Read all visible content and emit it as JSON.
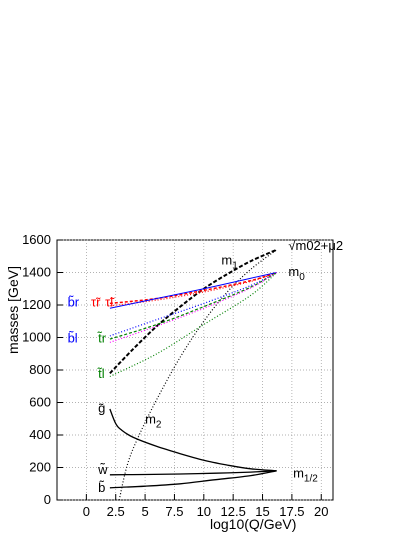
{
  "chart_data": {
    "type": "line",
    "xlabel": "log10(Q/GeV)",
    "ylabel": "masses [GeV]",
    "xlim": [
      -2.5,
      21
    ],
    "ylim": [
      0,
      1600
    ],
    "xticks": [
      0,
      2.5,
      5,
      7.5,
      10,
      12.5,
      15,
      17.5,
      20
    ],
    "xtick_labels": [
      "0",
      "2.5",
      "5",
      "7.5",
      "10",
      "12.5",
      "15",
      "17.5",
      "20"
    ],
    "yticks": [
      0,
      200,
      400,
      600,
      800,
      1000,
      1200,
      1400,
      1600
    ],
    "ytick_labels": [
      "0",
      "200",
      "400",
      "600",
      "800",
      "1000",
      "1200",
      "1400",
      "1600"
    ],
    "grid": true,
    "series": [
      {
        "name": "m1",
        "color": "#000000",
        "dash": "4 2",
        "width": 2,
        "x": [
          2,
          4,
          6,
          8,
          10,
          12,
          14,
          16.2
        ],
        "y": [
          780,
          930,
          1070,
          1190,
          1300,
          1390,
          1470,
          1540
        ]
      },
      {
        "name": "m2",
        "color": "#000000",
        "dash": "1 2",
        "width": 1.2,
        "x": [
          2.8,
          3.5,
          4.5,
          6,
          8,
          10,
          12,
          14,
          16.2
        ],
        "y": [
          0,
          220,
          400,
          620,
          880,
          1100,
          1280,
          1420,
          1540
        ]
      },
      {
        "name": "gluino",
        "color": "#000000",
        "dash": "",
        "width": 1.3,
        "x": [
          2,
          2.5,
          3,
          4,
          6,
          8,
          10,
          12,
          14,
          16.2
        ],
        "y": [
          560,
          470,
          430,
          385,
          330,
          285,
          245,
          215,
          192,
          180
        ]
      },
      {
        "name": "wino",
        "color": "#000000",
        "dash": "",
        "width": 1.3,
        "x": [
          2,
          5,
          8,
          11,
          14,
          16.2
        ],
        "y": [
          155,
          157,
          160,
          165,
          172,
          180
        ]
      },
      {
        "name": "bino",
        "color": "#000000",
        "dash": "",
        "width": 1.3,
        "x": [
          2,
          5,
          8,
          11,
          14,
          16.2
        ],
        "y": [
          75,
          85,
          100,
          125,
          150,
          180
        ]
      },
      {
        "name": "tau_l",
        "color": "#ff0000",
        "dash": "3 2",
        "width": 1.5,
        "x": [
          2,
          6,
          10,
          14,
          16.2
        ],
        "y": [
          1210,
          1240,
          1290,
          1350,
          1400
        ]
      },
      {
        "name": "tau_r",
        "color": "#ff0000",
        "dash": "1 2",
        "width": 1.2,
        "x": [
          2,
          6,
          10,
          14,
          16.2
        ],
        "y": [
          1195,
          1230,
          1280,
          1345,
          1400
        ]
      },
      {
        "name": "b_r",
        "color": "#0000ff",
        "dash": "",
        "width": 1,
        "x": [
          2,
          6,
          10,
          14,
          16.2
        ],
        "y": [
          1180,
          1240,
          1300,
          1365,
          1400
        ]
      },
      {
        "name": "b_l",
        "color": "#0000ff",
        "dash": "1 2",
        "width": 1.2,
        "x": [
          2,
          6,
          10,
          14,
          16.2
        ],
        "y": [
          1010,
          1110,
          1210,
          1320,
          1400
        ]
      },
      {
        "name": "t_r",
        "color": "#008000",
        "dash": "3 2",
        "width": 1.2,
        "x": [
          2,
          6,
          10,
          14,
          16.2
        ],
        "y": [
          990,
          1080,
          1190,
          1310,
          1400
        ]
      },
      {
        "name": "t_l_red",
        "color": "#ff00ff",
        "dash": "1 2",
        "width": 1.2,
        "x": [
          2,
          6,
          10,
          14,
          16.2
        ],
        "y": [
          970,
          1070,
          1180,
          1305,
          1400
        ]
      },
      {
        "name": "t_l",
        "color": "#008000",
        "dash": "1 2",
        "width": 1.2,
        "x": [
          2,
          6,
          10,
          14,
          16.2
        ],
        "y": [
          760,
          900,
          1080,
          1260,
          1400
        ]
      }
    ],
    "annotations": [
      {
        "text": "m1",
        "main": "m",
        "sub": "1",
        "x": 11.5,
        "y": 1450
      },
      {
        "text": "m0",
        "main": "m",
        "sub": "0",
        "x": 17.2,
        "y": 1380
      },
      {
        "text": "√m02+μ2",
        "x": 17.2,
        "y": 1540
      },
      {
        "text": "m2",
        "main": "m",
        "sub": "2",
        "x": 5.0,
        "y": 470
      },
      {
        "text": "m1/2",
        "main": "m",
        "sub": "1/2",
        "x": 17.6,
        "y": 140
      },
      {
        "text": "g̃",
        "x": 1.0,
        "y": 540
      },
      {
        "text": "w̃",
        "x": 1.0,
        "y": 160
      },
      {
        "text": "b̃",
        "x": 1.0,
        "y": 50
      },
      {
        "text": "b̃r",
        "x": -1.6,
        "y": 1190,
        "color": "#0000ff"
      },
      {
        "text": "τ̃r",
        "x": 0.4,
        "y": 1190,
        "color": "#ff0000"
      },
      {
        "text": "τ̃l",
        "x": 1.6,
        "y": 1190,
        "color": "#ff0000"
      },
      {
        "text": "b̃l",
        "x": -1.6,
        "y": 970,
        "color": "#0000ff"
      },
      {
        "text": "t̃r",
        "x": 1.0,
        "y": 970,
        "color": "#008000"
      },
      {
        "text": "t̃l",
        "x": 1.0,
        "y": 750,
        "color": "#008000"
      }
    ]
  }
}
